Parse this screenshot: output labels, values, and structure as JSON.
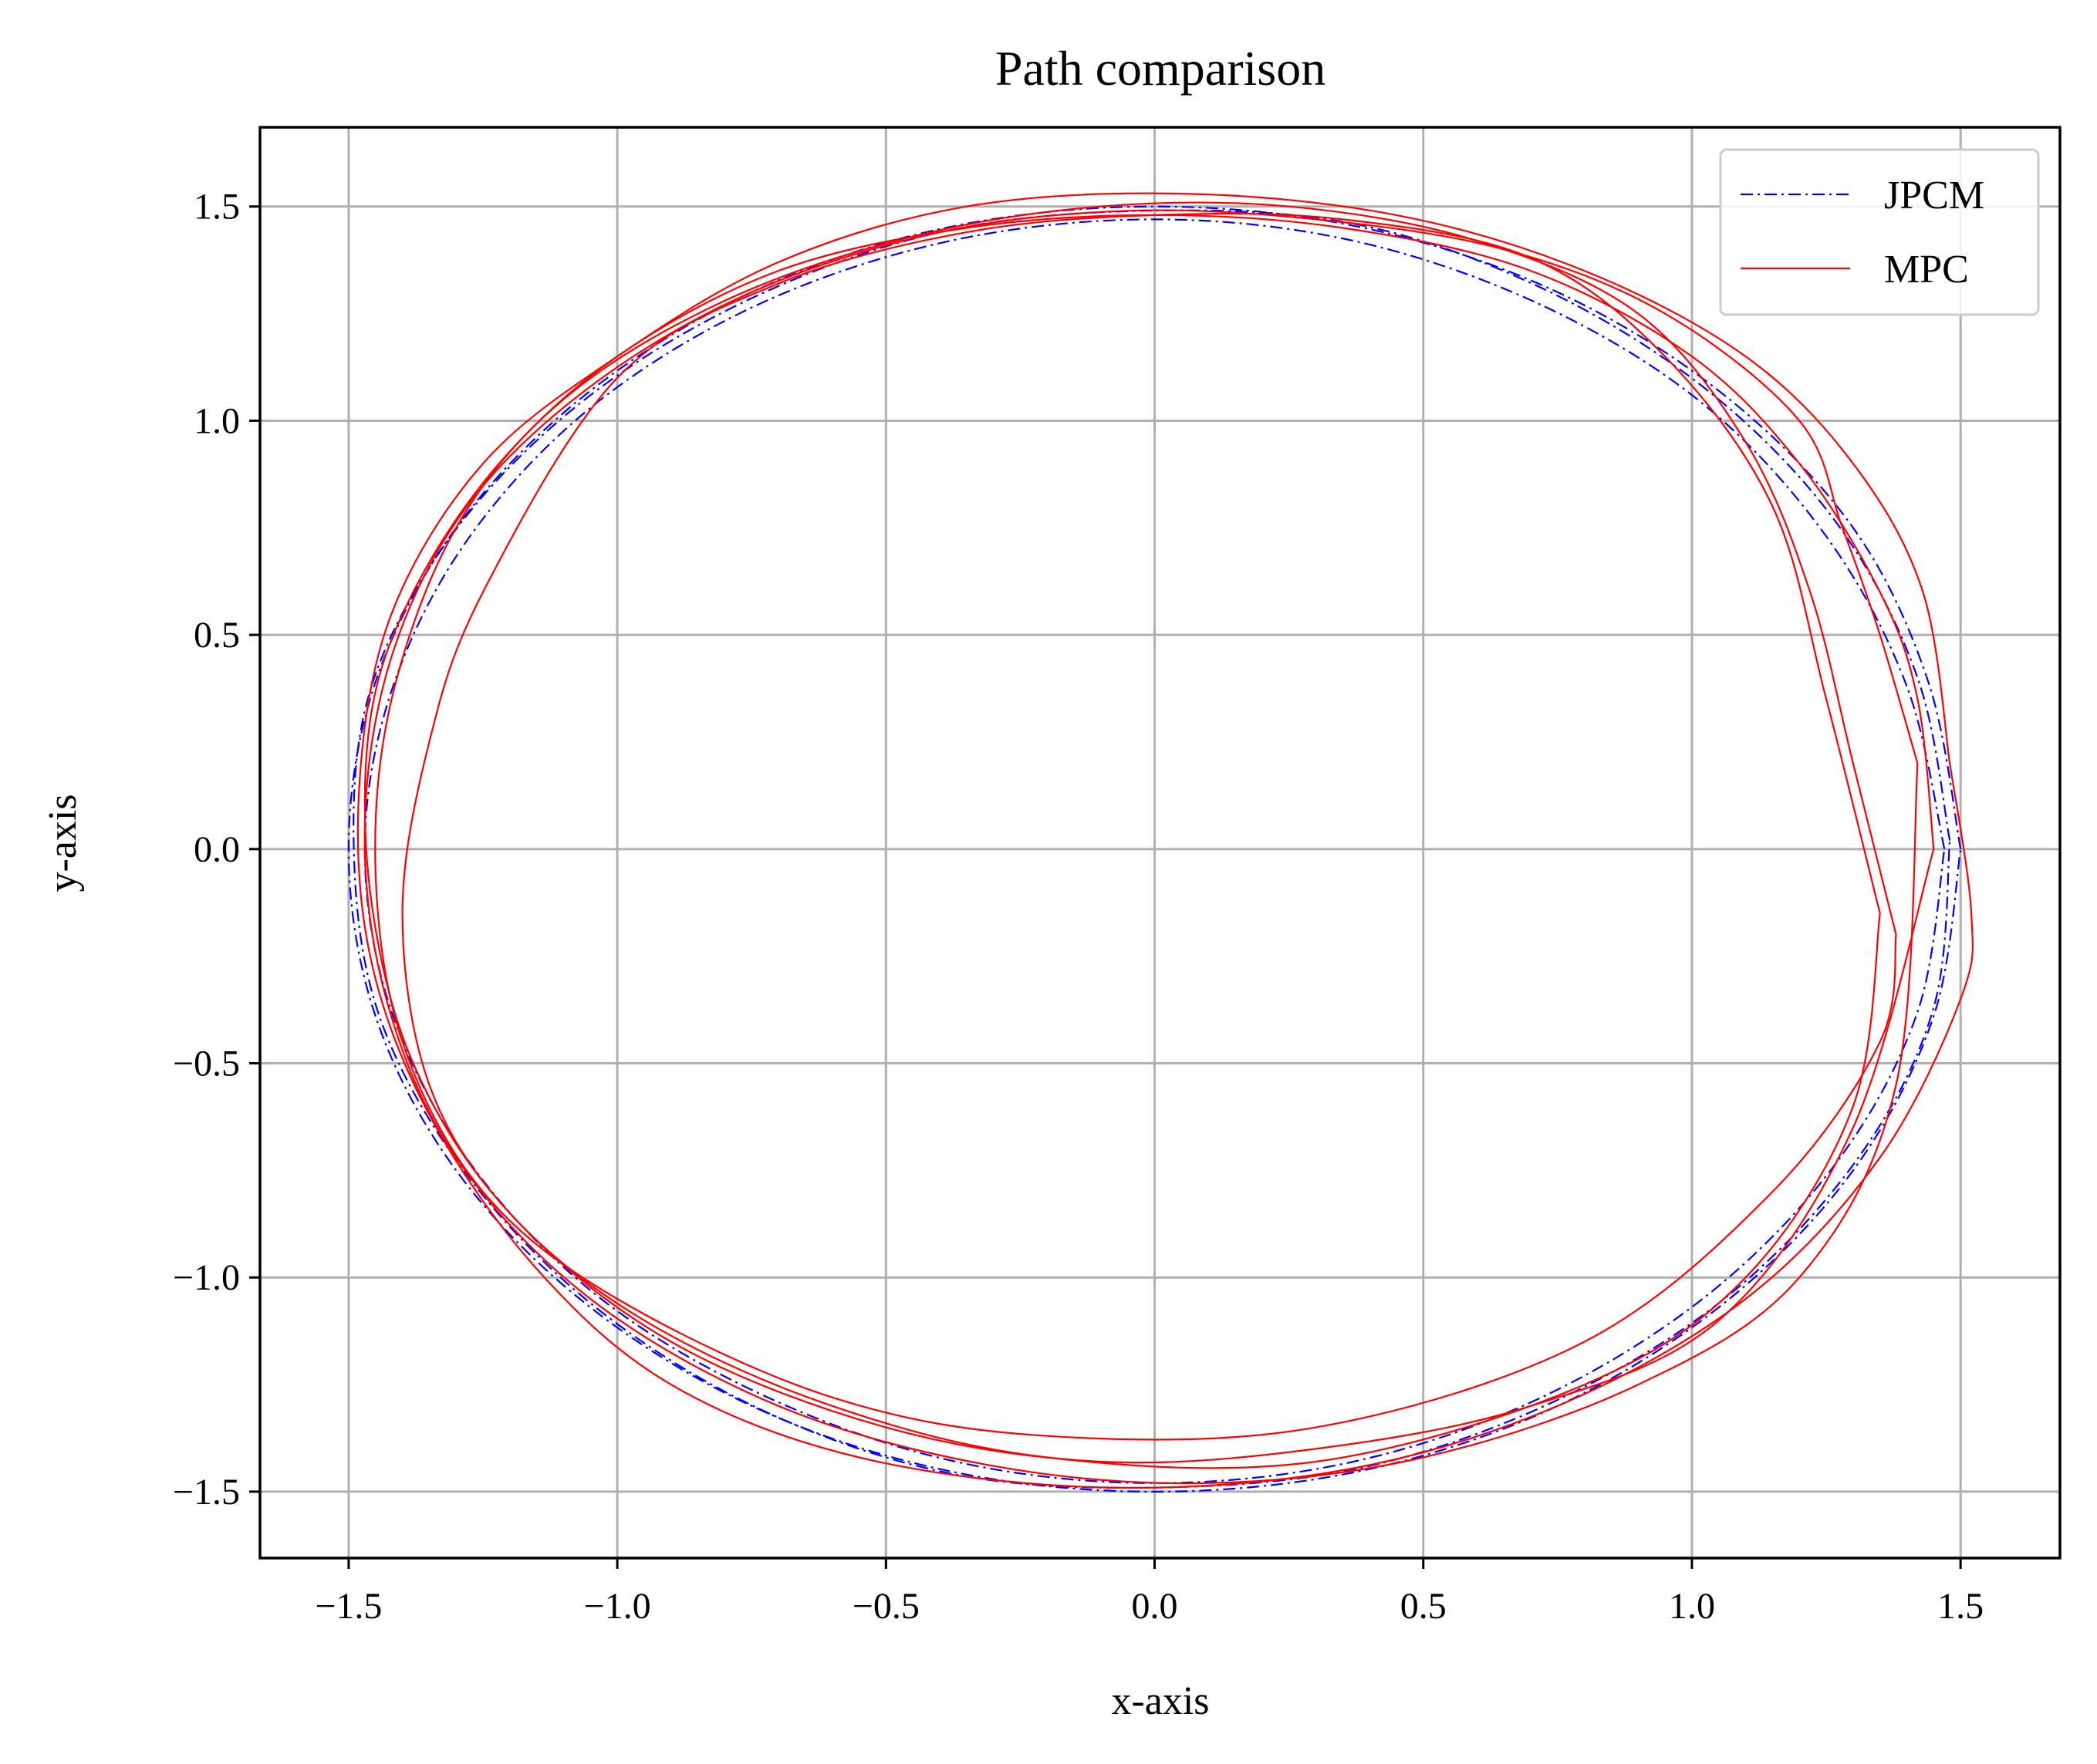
{
  "chart_data": {
    "type": "line",
    "title": "Path comparison",
    "xlabel": "x-axis",
    "ylabel": "y-axis",
    "xlim": [
      -1.665,
      1.685
    ],
    "ylim": [
      -1.655,
      1.685
    ],
    "xticks": [
      -1.5,
      -1.0,
      -0.5,
      0.0,
      0.5,
      1.0,
      1.5
    ],
    "xtick_labels": [
      "−1.5",
      "−1.0",
      "−0.5",
      "0.0",
      "0.5",
      "1.0",
      "1.5"
    ],
    "yticks": [
      -1.5,
      -1.0,
      -0.5,
      0.0,
      0.5,
      1.0,
      1.5
    ],
    "ytick_labels": [
      "−1.5",
      "−1.0",
      "−0.5",
      "0.0",
      "0.5",
      "1.0",
      "1.5"
    ],
    "grid": true,
    "legend_position": "top-right",
    "series": [
      {
        "name": "JPCM",
        "color": "#0000ff",
        "style": "dash-dot",
        "paths": [
          {
            "x": [
              1.5,
              1.44,
              1.3,
              1.06,
              0.75,
              0.39,
              0.0,
              -0.39,
              -0.75,
              -1.06,
              -1.3,
              -1.45,
              -1.5,
              -1.45,
              -1.3,
              -1.06,
              -0.75,
              -0.39,
              0.0,
              0.39,
              0.75,
              1.06,
              1.3,
              1.45,
              1.5
            ],
            "y": [
              0.0,
              0.39,
              0.75,
              1.06,
              1.3,
              1.45,
              1.5,
              1.45,
              1.3,
              1.06,
              0.75,
              0.39,
              0.0,
              -0.39,
              -0.75,
              -1.06,
              -1.3,
              -1.45,
              -1.5,
              -1.45,
              -1.3,
              -1.06,
              -0.75,
              -0.39,
              0.0
            ]
          },
          {
            "x": [
              1.48,
              1.42,
              1.27,
              1.03,
              0.72,
              0.37,
              -0.02,
              -0.4,
              -0.76,
              -1.07,
              -1.31,
              -1.46,
              -1.49,
              -1.44,
              -1.28,
              -1.04,
              -0.73,
              -0.37,
              0.02,
              0.4,
              0.76,
              1.07,
              1.31,
              1.45,
              1.48
            ],
            "y": [
              0.02,
              0.4,
              0.76,
              1.07,
              1.31,
              1.46,
              1.49,
              1.44,
              1.28,
              1.04,
              0.73,
              0.37,
              -0.02,
              -0.4,
              -0.76,
              -1.07,
              -1.31,
              -1.46,
              -1.49,
              -1.44,
              -1.28,
              -1.04,
              -0.72,
              -0.37,
              0.02
            ]
          },
          {
            "x": [
              1.47,
              1.4,
              1.25,
              1.02,
              0.72,
              0.37,
              0.0,
              -0.38,
              -0.74,
              -1.05,
              -1.28,
              -1.42,
              -1.47,
              -1.42,
              -1.27,
              -1.03,
              -0.72,
              -0.37,
              0.0,
              0.37,
              0.72,
              1.03,
              1.27,
              1.42,
              1.47
            ],
            "y": [
              0.0,
              0.38,
              0.73,
              1.04,
              1.27,
              1.42,
              1.47,
              1.42,
              1.27,
              1.03,
              0.72,
              0.37,
              0.0,
              -0.38,
              -0.74,
              -1.05,
              -1.28,
              -1.43,
              -1.48,
              -1.43,
              -1.28,
              -1.04,
              -0.73,
              -0.38,
              0.0
            ]
          }
        ]
      },
      {
        "name": "MPC",
        "color": "#ff0000",
        "style": "solid",
        "paths": [
          {
            "x": [
              1.48,
              1.43,
              1.3,
              1.1,
              0.8,
              0.45,
              0.05,
              -0.35,
              -0.7,
              -1.0,
              -1.25,
              -1.42,
              -1.48,
              -1.46,
              -1.35,
              -1.15,
              -0.9,
              -0.55,
              -0.1,
              0.35,
              0.75,
              1.1,
              1.35,
              1.5,
              1.52,
              1.48
            ],
            "y": [
              0.2,
              0.6,
              0.9,
              1.15,
              1.35,
              1.48,
              1.53,
              1.5,
              1.37,
              1.15,
              0.9,
              0.55,
              0.15,
              -0.25,
              -0.62,
              -0.98,
              -1.25,
              -1.42,
              -1.49,
              -1.45,
              -1.3,
              -1.05,
              -0.72,
              -0.35,
              -0.15,
              0.2
            ]
          },
          {
            "x": [
              1.45,
              1.42,
              1.35,
              1.2,
              1.0,
              0.7,
              0.35,
              0.0,
              -0.35,
              -0.7,
              -1.0,
              -1.22,
              -1.38,
              -1.46,
              -1.46,
              -1.38,
              -1.2,
              -0.9,
              -0.5,
              -0.1,
              0.3,
              0.7,
              1.05,
              1.3,
              1.45
            ],
            "y": [
              0.0,
              0.35,
              0.6,
              0.9,
              1.15,
              1.35,
              1.45,
              1.48,
              1.45,
              1.35,
              1.15,
              0.9,
              0.6,
              0.3,
              -0.1,
              -0.5,
              -0.85,
              -1.15,
              -1.35,
              -1.43,
              -1.4,
              -1.3,
              -1.1,
              -0.65,
              0.0
            ]
          },
          {
            "x": [
              1.42,
              1.35,
              1.28,
              1.2,
              0.95,
              0.65,
              0.3,
              -0.05,
              -0.4,
              -0.75,
              -1.05,
              -1.28,
              -1.42,
              -1.47,
              -1.43,
              -1.3,
              -1.05,
              -0.7,
              -0.3,
              0.1,
              0.5,
              0.9,
              1.2,
              1.38,
              1.42
            ],
            "y": [
              0.2,
              0.5,
              0.75,
              1.0,
              1.25,
              1.4,
              1.47,
              1.49,
              1.44,
              1.3,
              1.08,
              0.8,
              0.45,
              0.05,
              -0.35,
              -0.72,
              -1.05,
              -1.3,
              -1.44,
              -1.48,
              -1.42,
              -1.25,
              -1.0,
              -0.55,
              0.2
            ]
          },
          {
            "x": [
              1.38,
              1.3,
              1.22,
              1.1,
              0.9,
              0.6,
              0.25,
              -0.1,
              -0.45,
              -0.8,
              -1.1,
              -1.3,
              -1.42,
              -1.45,
              -1.4,
              -1.25,
              -1.0,
              -0.6,
              -0.2,
              0.3,
              0.8,
              1.15,
              1.35,
              1.38
            ],
            "y": [
              -0.2,
              0.2,
              0.6,
              0.95,
              1.25,
              1.42,
              1.5,
              1.5,
              1.43,
              1.28,
              1.05,
              0.75,
              0.35,
              -0.05,
              -0.45,
              -0.8,
              -1.05,
              -1.28,
              -1.37,
              -1.35,
              -1.15,
              -0.8,
              -0.45,
              -0.2
            ]
          },
          {
            "x": [
              1.35,
              1.25,
              1.15,
              0.95,
              0.7,
              0.35,
              0.0,
              -0.35,
              -0.7,
              -1.0,
              -1.25,
              -1.35,
              -1.4,
              -1.35,
              -1.2,
              -0.95,
              -0.6,
              -0.2,
              0.3,
              0.8,
              1.1,
              1.3,
              1.35
            ],
            "y": [
              -0.15,
              0.35,
              0.8,
              1.15,
              1.38,
              1.47,
              1.48,
              1.44,
              1.32,
              1.1,
              0.6,
              0.25,
              -0.15,
              -0.55,
              -0.85,
              -1.1,
              -1.3,
              -1.42,
              -1.43,
              -1.25,
              -1.0,
              -0.6,
              -0.15
            ]
          }
        ]
      }
    ]
  }
}
